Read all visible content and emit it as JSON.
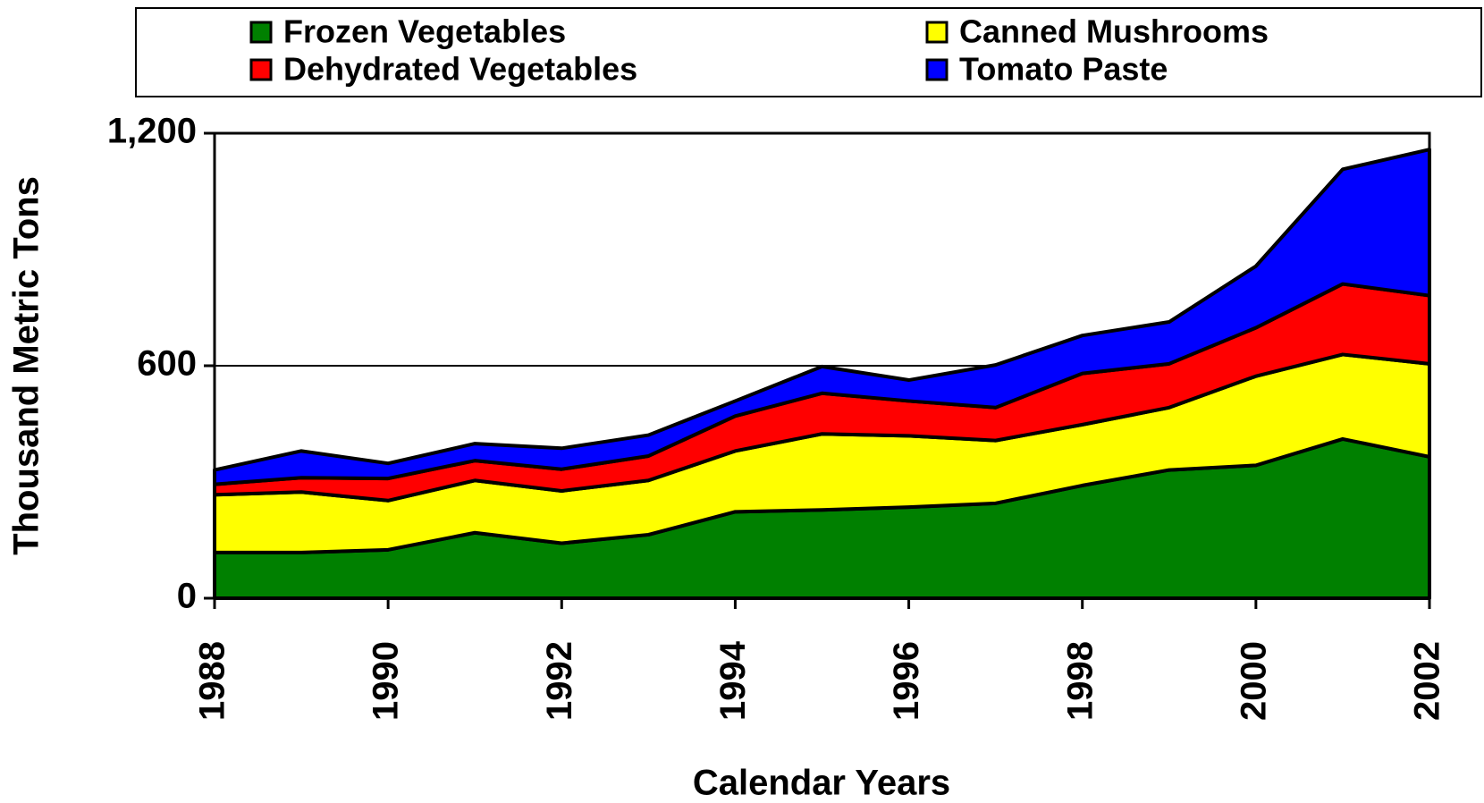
{
  "chart_data": {
    "type": "stacked_area",
    "x": [
      1988,
      1989,
      1990,
      1991,
      1992,
      1993,
      1994,
      1995,
      1996,
      1997,
      1998,
      1999,
      2000,
      2001,
      2002
    ],
    "series": [
      {
        "name": "Frozen Vegetables",
        "color": "#008000",
        "values": [
          118,
          118,
          125,
          169,
          142,
          164,
          223,
          228,
          235,
          245,
          291,
          331,
          343,
          411,
          365
        ]
      },
      {
        "name": "Canned Mushrooms",
        "color": "#ffff00",
        "values": [
          149,
          156,
          127,
          135,
          135,
          140,
          157,
          196,
          184,
          162,
          157,
          161,
          230,
          218,
          240
        ]
      },
      {
        "name": "Dehydrated Vegetables",
        "color": "#ff0000",
        "values": [
          27,
          37,
          57,
          51,
          56,
          63,
          90,
          105,
          90,
          85,
          132,
          113,
          125,
          182,
          176
        ]
      },
      {
        "name": "Tomato Paste",
        "color": "#0000ff",
        "values": [
          37,
          69,
          39,
          44,
          54,
          54,
          39,
          69,
          54,
          110,
          98,
          108,
          159,
          296,
          377
        ]
      }
    ],
    "xlabel": "Calendar Years",
    "ylabel": "Thousand Metric Tons",
    "xlim": [
      1988,
      2002
    ],
    "xticks": [
      1988,
      1990,
      1992,
      1994,
      1996,
      1998,
      2000,
      2002
    ],
    "ylim": [
      0,
      1200
    ],
    "yticks": [
      0,
      600,
      {
        "value": 1200,
        "label": "1,200"
      }
    ],
    "grid": true,
    "legend": "top"
  }
}
